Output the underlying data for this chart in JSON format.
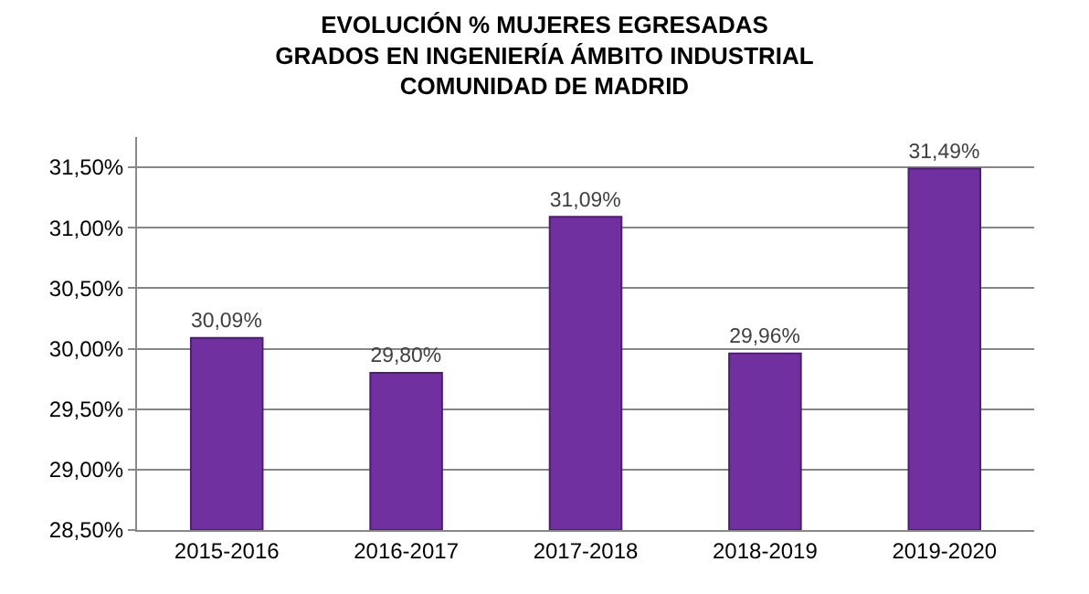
{
  "chart_data": {
    "type": "bar",
    "title": "EVOLUCIÓN % MUJERES EGRESADAS\nGRADOS EN INGENIERÍA ÁMBITO INDUSTRIAL\nCOMUNIDAD DE MADRID",
    "categories": [
      "2015-2016",
      "2016-2017",
      "2017-2018",
      "2018-2019",
      "2019-2020"
    ],
    "values": [
      30.09,
      29.8,
      31.09,
      29.96,
      31.49
    ],
    "value_labels": [
      "30,09%",
      "29,80%",
      "31,09%",
      "29,96%",
      "31,49%"
    ],
    "color": "#7030a0",
    "ylim": [
      28.5,
      31.75
    ],
    "yticks": [
      {
        "value": 28.5,
        "label": "28,50%"
      },
      {
        "value": 29,
        "label": "29,00%"
      },
      {
        "value": 29.5,
        "label": "29,50%"
      },
      {
        "value": 30,
        "label": "30,00%"
      },
      {
        "value": 30.5,
        "label": "30,50%"
      },
      {
        "value": 31,
        "label": "31,00%"
      },
      {
        "value": 31.5,
        "label": "31,50%"
      }
    ],
    "grid": true,
    "legend": false
  }
}
